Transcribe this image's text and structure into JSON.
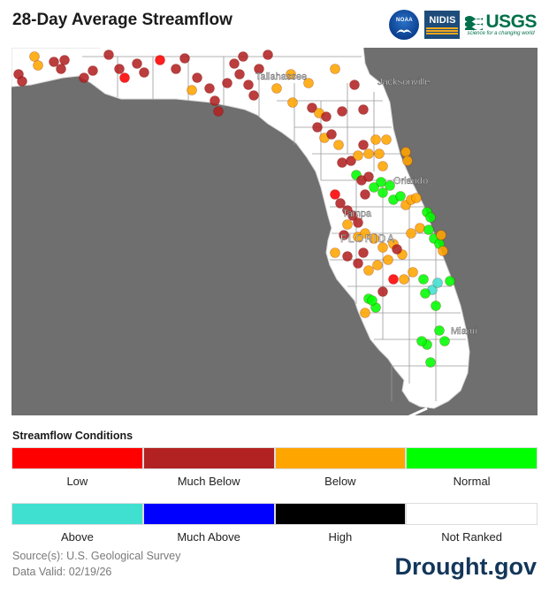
{
  "header": {
    "title": "28-Day Average Streamflow",
    "logos": {
      "noaa": "NOAA",
      "nidis": "NIDIS",
      "usgs": "USGS",
      "usgs_tagline": "science for a changing world"
    }
  },
  "map": {
    "region": "FLORIDA",
    "cities": [
      "Tallahassee",
      "Jacksonville",
      "Orlando",
      "Tampa",
      "Miami"
    ],
    "background_color": "#6f6f6f",
    "land_color": "#ffffff"
  },
  "legend": {
    "title": "Streamflow Conditions",
    "items": [
      {
        "label": "Low",
        "color": "#ff0000"
      },
      {
        "label": "Much Below",
        "color": "#b22222"
      },
      {
        "label": "Below",
        "color": "#ffa500"
      },
      {
        "label": "Normal",
        "color": "#00ff00"
      },
      {
        "label": "Above",
        "color": "#40e0d0"
      },
      {
        "label": "Much Above",
        "color": "#0000ff"
      },
      {
        "label": "High",
        "color": "#000000"
      },
      {
        "label": "Not Ranked",
        "color": "#ffffff"
      }
    ]
  },
  "footer": {
    "source": "Source(s): U.S. Geological Survey",
    "valid": "Data Valid: 02/19/26",
    "brand": "Drought.gov"
  }
}
